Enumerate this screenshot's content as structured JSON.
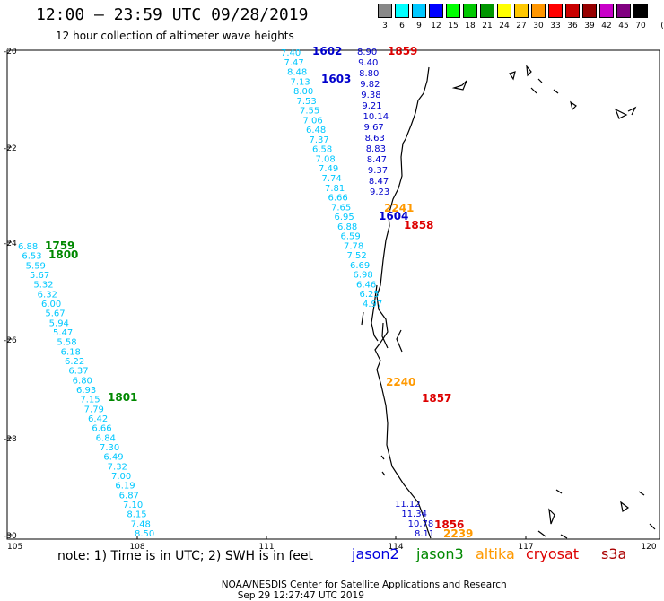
{
  "header": {
    "title": "12:00 – 23:59 UTC 09/28/2019",
    "subtitle": "12 hour collection of altimeter wave heights"
  },
  "legend": {
    "unit": "(ft)",
    "levels": [
      "3",
      "6",
      "9",
      "12",
      "15",
      "18",
      "21",
      "24",
      "27",
      "30",
      "33",
      "36",
      "39",
      "42",
      "45",
      "70"
    ],
    "colors": [
      "#888888",
      "#00ffff",
      "#00c8ff",
      "#0000ff",
      "#00ff00",
      "#00c800",
      "#009600",
      "#ffff00",
      "#ffc800",
      "#ff9600",
      "#ff0000",
      "#c80000",
      "#960000",
      "#c800c8",
      "#800080",
      "#000000"
    ]
  },
  "axes": {
    "lon_ticks": [
      "105",
      "108",
      "111",
      "114",
      "117",
      "120"
    ],
    "lat_ticks": [
      "-20",
      "-22",
      "-24",
      "-26",
      "-28",
      "-30"
    ]
  },
  "footer": {
    "note": "note: 1) Time is in UTC; 2) SWH is in feet",
    "satellites": [
      {
        "name": "jason2",
        "color": "#0000dd"
      },
      {
        "name": "jason3",
        "color": "#008800"
      },
      {
        "name": "altika",
        "color": "#ff9900"
      },
      {
        "name": "cryosat",
        "color": "#dd0000"
      },
      {
        "name": "s3a",
        "color": "#aa0000"
      }
    ],
    "credit": "NOAA/NESDIS Center for Satellite Applications and Research",
    "timestamp": "Sep 29 12:27:47 UTC 2019"
  },
  "passes": [
    {
      "satellite": "jason2",
      "time": "1602",
      "color": "#0000cc"
    },
    {
      "satellite": "jason2",
      "time": "1603",
      "color": "#0000cc"
    },
    {
      "satellite": "jason2",
      "time": "1604",
      "color": "#0000cc"
    },
    {
      "satellite": "cryosat",
      "time": "1859",
      "color": "#dd0000"
    },
    {
      "satellite": "cryosat",
      "time": "1858",
      "color": "#dd0000"
    },
    {
      "satellite": "cryosat",
      "time": "1857",
      "color": "#dd0000"
    },
    {
      "satellite": "cryosat",
      "time": "1856",
      "color": "#dd0000"
    },
    {
      "satellite": "jason3",
      "time": "1759",
      "color": "#008800"
    },
    {
      "satellite": "jason3",
      "time": "1800",
      "color": "#008800"
    },
    {
      "satellite": "jason3",
      "time": "1801",
      "color": "#008800"
    },
    {
      "satellite": "altika",
      "time": "2241",
      "color": "#ff9900"
    },
    {
      "satellite": "altika",
      "time": "2240",
      "color": "#ff9900"
    },
    {
      "satellite": "altika",
      "time": "2239",
      "color": "#ff9900"
    }
  ],
  "tracks": {
    "western": [
      "6.88",
      "6.53",
      "5.59",
      "5.67",
      "5.32",
      "6.32",
      "6.00",
      "5.67",
      "5.94",
      "5.47",
      "5.58",
      "6.18",
      "6.22",
      "6.37",
      "6.80",
      "6.93",
      "7.15",
      "7.79",
      "6.42",
      "6.66",
      "6.84",
      "7.30",
      "6.49",
      "7.32",
      "7.00",
      "6.19",
      "6.87",
      "7.10",
      "8.15",
      "7.48",
      "8.50"
    ],
    "jason2": [
      "8.90",
      "9.40",
      "8.80",
      "9.82",
      "9.38",
      "9.21",
      "10.14",
      "9.67",
      "8.63",
      "8.83",
      "8.47",
      "9.37",
      "8.47",
      "9.23"
    ],
    "cryosat_south": [
      "11.12",
      "11.34",
      "10.78",
      "8.11"
    ],
    "central": [
      "7.40",
      "7.47",
      "8.48",
      "7.13",
      "8.00",
      "7.53",
      "7.55",
      "7.06",
      "6.48",
      "7.37",
      "6.58",
      "7.08",
      "7.49",
      "7.74",
      "7.81",
      "6.66",
      "7.65",
      "6.95",
      "6.88",
      "6.59",
      "7.78",
      "7.52",
      "6.69",
      "6.98",
      "6.46",
      "6.25",
      "4.97"
    ]
  }
}
